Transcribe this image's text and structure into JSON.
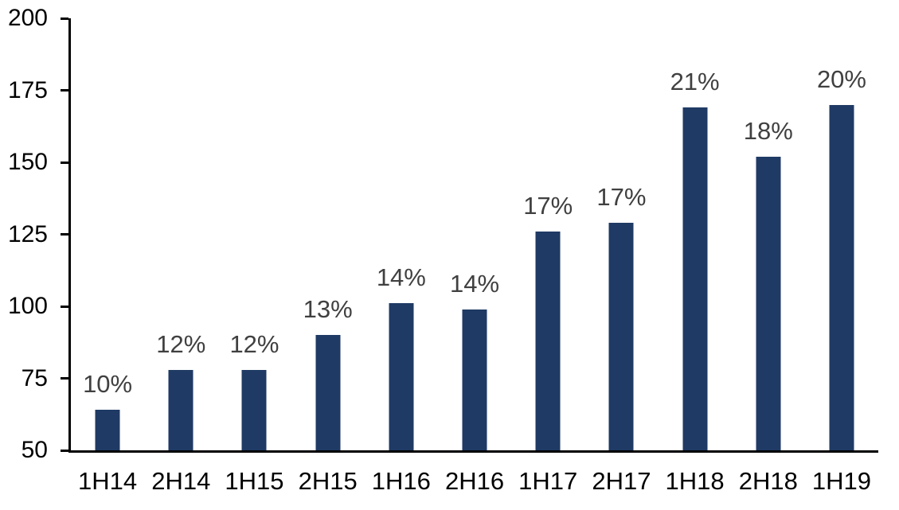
{
  "chart_data": {
    "type": "bar",
    "categories": [
      "1H14",
      "2H14",
      "1H15",
      "2H15",
      "1H16",
      "2H16",
      "1H17",
      "2H17",
      "1H18",
      "2H18",
      "1H19"
    ],
    "values": [
      64,
      78,
      78,
      90,
      101,
      99,
      126,
      129,
      169,
      152,
      170
    ],
    "data_labels": [
      "10%",
      "12%",
      "12%",
      "13%",
      "14%",
      "14%",
      "17%",
      "17%",
      "21%",
      "18%",
      "20%"
    ],
    "title": "",
    "xlabel": "",
    "ylabel": "",
    "ylim": [
      50,
      200
    ],
    "yticks": [
      50,
      75,
      100,
      125,
      150,
      175,
      200
    ],
    "grid": false,
    "legend": false,
    "bar_color": "#1F3A64",
    "data_label_color": "#404040",
    "axis_color": "#000000",
    "tick_label_color": "#000000",
    "background_color": "#FFFFFF"
  }
}
